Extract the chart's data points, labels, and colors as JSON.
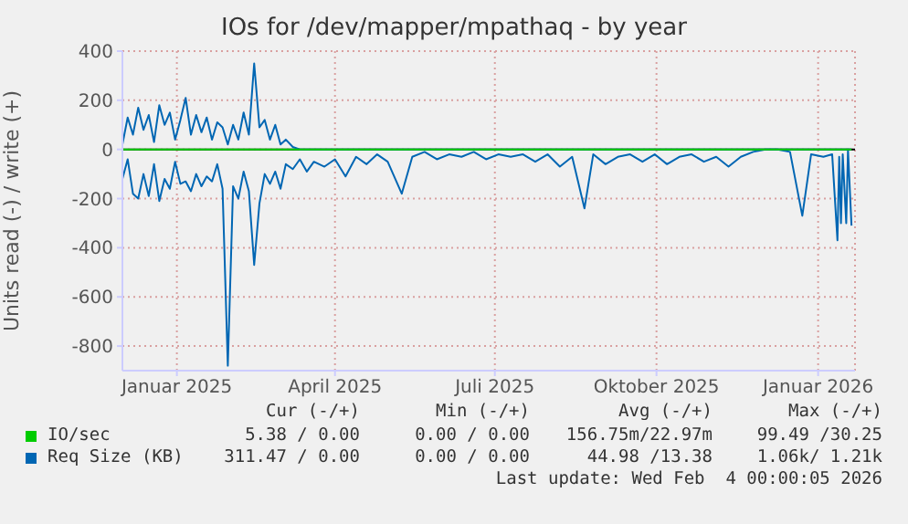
{
  "chart_data": {
    "type": "line",
    "title": "IOs for /dev/mapper/mpathaq - by year",
    "ylabel": "Units read (-) / write (+)",
    "x": [
      "2024-12-01",
      "2024-12-04",
      "2024-12-07",
      "2024-12-10",
      "2024-12-13",
      "2024-12-16",
      "2024-12-19",
      "2024-12-22",
      "2024-12-25",
      "2024-12-28",
      "2024-12-31",
      "2025-01-03",
      "2025-01-06",
      "2025-01-09",
      "2025-01-12",
      "2025-01-15",
      "2025-01-18",
      "2025-01-21",
      "2025-01-24",
      "2025-01-27",
      "2025-01-30",
      "2025-02-02",
      "2025-02-05",
      "2025-02-08",
      "2025-02-11",
      "2025-02-14",
      "2025-02-17",
      "2025-02-20",
      "2025-02-23",
      "2025-02-26",
      "2025-03-01",
      "2025-03-04",
      "2025-03-08",
      "2025-03-12",
      "2025-03-16",
      "2025-03-20",
      "2025-03-26",
      "2025-04-01",
      "2025-04-07",
      "2025-04-13",
      "2025-04-19",
      "2025-04-25",
      "2025-05-01",
      "2025-05-09",
      "2025-05-15",
      "2025-05-22",
      "2025-05-29",
      "2025-06-05",
      "2025-06-12",
      "2025-06-19",
      "2025-06-26",
      "2025-07-03",
      "2025-07-10",
      "2025-07-17",
      "2025-07-24",
      "2025-07-31",
      "2025-08-07",
      "2025-08-14",
      "2025-08-21",
      "2025-08-26",
      "2025-09-02",
      "2025-09-09",
      "2025-09-16",
      "2025-09-23",
      "2025-09-30",
      "2025-10-07",
      "2025-10-14",
      "2025-10-21",
      "2025-10-28",
      "2025-11-04",
      "2025-11-11",
      "2025-11-18",
      "2025-11-25",
      "2025-12-02",
      "2025-12-09",
      "2025-12-16",
      "2025-12-23",
      "2025-12-28",
      "2026-01-04",
      "2026-01-09",
      "2026-01-12",
      "2026-01-13",
      "2026-01-14",
      "2026-01-15",
      "2026-01-17",
      "2026-01-18",
      "2026-01-20"
    ],
    "series": [
      {
        "name": "IO/sec",
        "color": "#00cc00",
        "x": [
          "2024-12-01",
          "2026-01-20"
        ],
        "values": [
          0,
          0
        ]
      },
      {
        "name": "Req Size (KB)",
        "color": "#0066b3",
        "values": [
          20,
          130,
          60,
          170,
          80,
          140,
          30,
          180,
          100,
          150,
          40,
          120,
          210,
          60,
          140,
          70,
          130,
          40,
          110,
          90,
          20,
          100,
          40,
          150,
          60,
          350,
          90,
          120,
          40,
          100,
          20,
          40,
          10,
          0,
          0,
          0,
          0,
          0,
          0,
          0,
          0,
          0,
          0,
          0,
          0,
          0,
          0,
          0,
          0,
          0,
          0,
          0,
          0,
          0,
          0,
          0,
          0,
          0,
          0,
          0,
          0,
          0,
          0,
          0,
          0,
          0,
          0,
          0,
          0,
          0,
          0,
          0,
          0,
          0,
          0,
          0,
          0,
          0,
          0,
          0,
          0,
          0,
          0,
          0,
          0,
          0,
          0
        ]
      },
      {
        "color": "#0066b3",
        "values": [
          -120,
          -40,
          -180,
          -200,
          -100,
          -190,
          -60,
          -210,
          -120,
          -160,
          -50,
          -140,
          -130,
          -170,
          -100,
          -150,
          -110,
          -130,
          -60,
          -160,
          -880,
          -150,
          -200,
          -90,
          -170,
          -470,
          -220,
          -100,
          -140,
          -90,
          -160,
          -60,
          -80,
          -40,
          -90,
          -50,
          -70,
          -40,
          -110,
          -30,
          -60,
          -20,
          -50,
          -180,
          -30,
          -10,
          -40,
          -20,
          -30,
          -10,
          -40,
          -20,
          -30,
          -20,
          -50,
          -20,
          -70,
          -30,
          -240,
          -20,
          -60,
          -30,
          -20,
          -50,
          -20,
          -60,
          -30,
          -20,
          -50,
          -30,
          -70,
          -30,
          -10,
          0,
          0,
          -10,
          -270,
          -20,
          -30,
          -20,
          -370,
          -30,
          -300,
          -20,
          -300,
          0,
          -310
        ]
      }
    ],
    "xlim": [
      "2024-12-01",
      "2026-01-22"
    ],
    "xticks": [
      {
        "value": "2025-01-01",
        "label": "Januar 2025"
      },
      {
        "value": "2025-04-01",
        "label": "April 2025"
      },
      {
        "value": "2025-07-01",
        "label": "Juli 2025"
      },
      {
        "value": "2025-10-01",
        "label": "Oktober 2025"
      },
      {
        "value": "2026-01-01",
        "label": "Januar 2026"
      }
    ],
    "ylim": [
      -900,
      400
    ],
    "yticks": [
      -800,
      -600,
      -400,
      -200,
      0,
      200,
      400
    ],
    "ref_lines": [
      {
        "axis": "y",
        "value": 0,
        "color": "#000000"
      }
    ],
    "grid": true,
    "legend": "bottom",
    "annotations": [
      "Cur (-/+)",
      "Min (-/+)",
      "Avg (-/+)",
      "Max (-/+)",
      "5.38 / 0.00",
      "0.00 / 0.00",
      "156.75m/22.97m",
      "99.49 /30.25",
      "311.47 / 0.00",
      "0.00 / 0.00",
      "44.98 /13.38",
      "1.06k/ 1.21k",
      "Last update: Wed Feb  4 00:00:05 2026"
    ]
  }
}
